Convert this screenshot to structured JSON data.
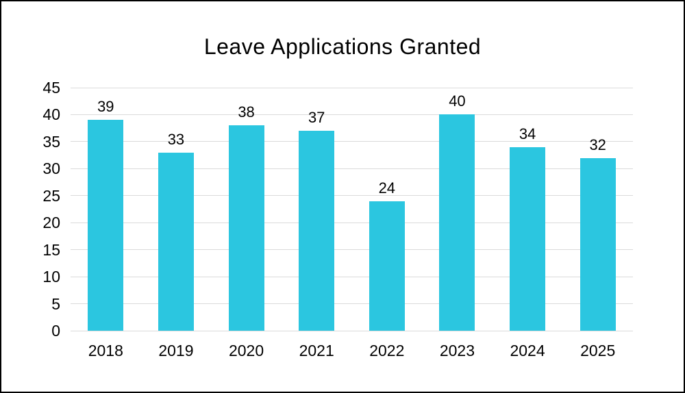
{
  "chart_data": {
    "type": "bar",
    "title": "Leave Applications Granted",
    "categories": [
      "2018",
      "2019",
      "2020",
      "2021",
      "2022",
      "2023",
      "2024",
      "2025"
    ],
    "values": [
      39,
      33,
      38,
      37,
      24,
      40,
      34,
      32
    ],
    "xlabel": "",
    "ylabel": "",
    "ylim": [
      0,
      45
    ],
    "yticks": [
      0,
      5,
      10,
      15,
      20,
      25,
      30,
      35,
      40,
      45
    ],
    "grid": "horizontal",
    "legend_position": "none",
    "data_labels": "above-bars",
    "colors": {
      "bar": "#2BC6E0",
      "gridline": "#DADADA",
      "text": "#000000",
      "background": "#FFFFFF",
      "frame_border": "#000000"
    }
  }
}
